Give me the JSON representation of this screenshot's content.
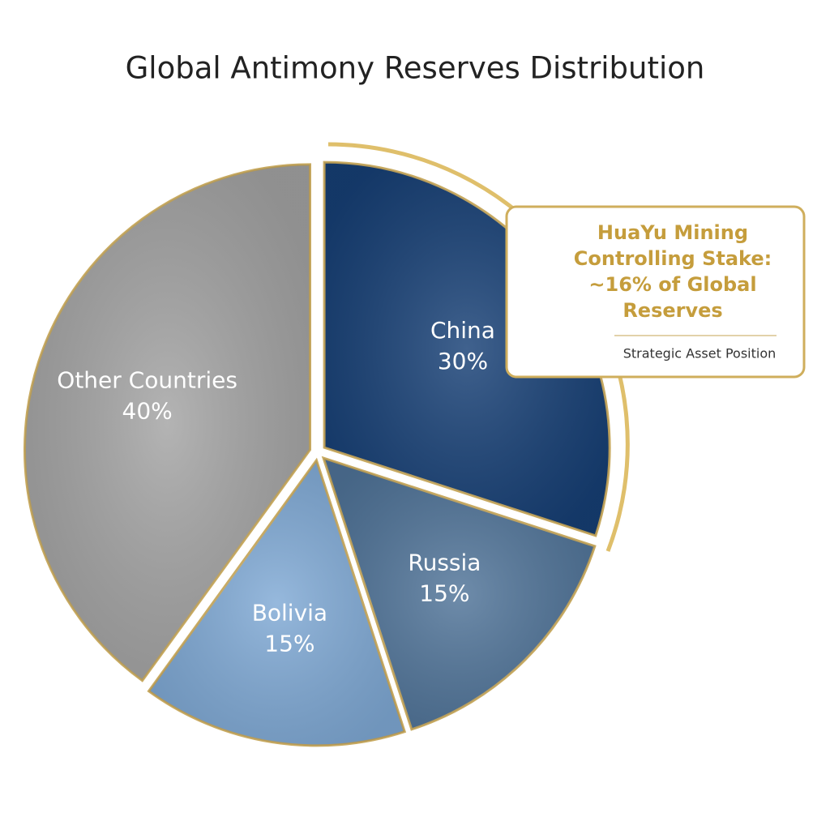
{
  "chart_data": {
    "type": "pie",
    "title": "Global Antimony Reserves Distribution",
    "categories": [
      "China",
      "Russia",
      "Bolivia",
      "Other Countries"
    ],
    "values": [
      30,
      15,
      15,
      40
    ],
    "value_labels": [
      "30%",
      "15%",
      "15%",
      "40%"
    ],
    "colors": [
      "#163f75",
      "#4f7398",
      "#7fa9d5",
      "#a3a3a3"
    ],
    "annotation": {
      "lines": [
        "HuaYu Mining",
        "Controlling Stake:",
        "~16% of Global",
        "Reserves"
      ],
      "subtitle": "Strategic Asset Position"
    }
  }
}
